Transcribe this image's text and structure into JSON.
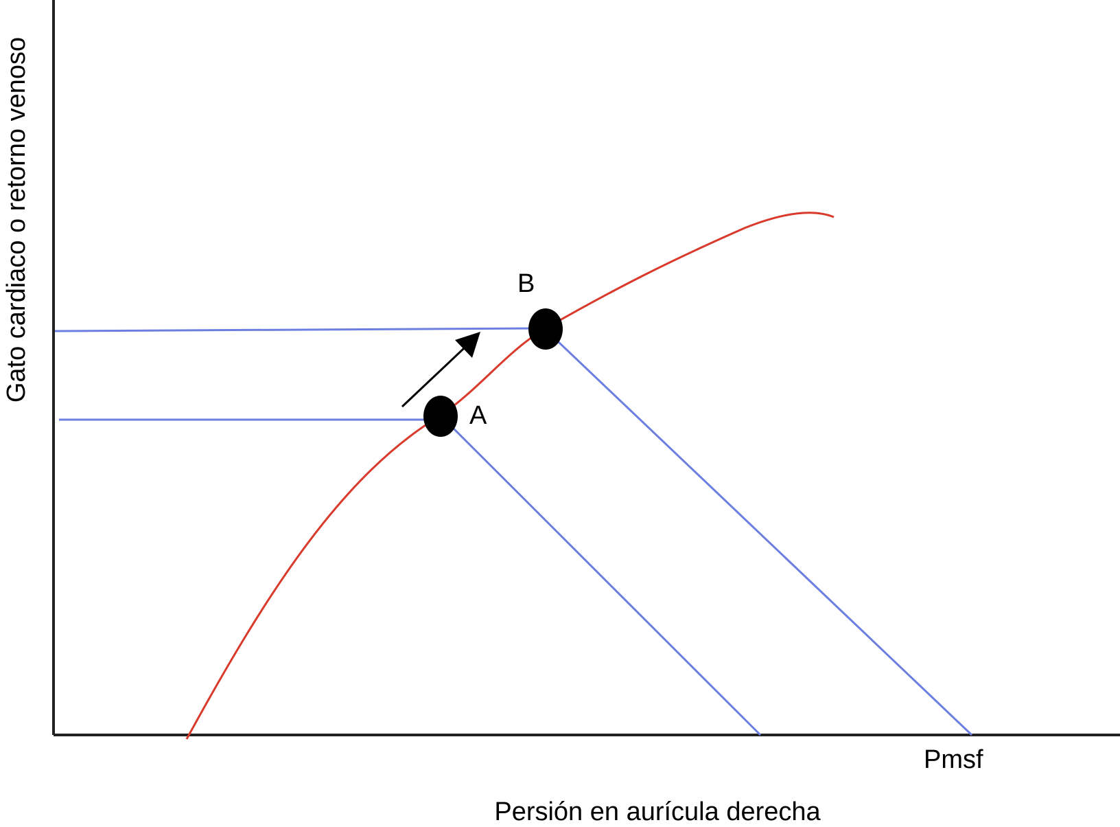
{
  "diagram": {
    "y_axis_label": "Gato cardiaco o retorno venoso",
    "x_axis_label": "Persión en aurícula derecha",
    "x_tick_label": "Pmsf",
    "points": [
      {
        "id": "A",
        "label": "A"
      },
      {
        "id": "B",
        "label": "B"
      }
    ],
    "colors": {
      "cardiac_output_curve": "#d93a2b",
      "venous_return_lines": "#6c7fe0",
      "axes": "#222222",
      "points": "#000000",
      "arrow": "#000000"
    }
  }
}
